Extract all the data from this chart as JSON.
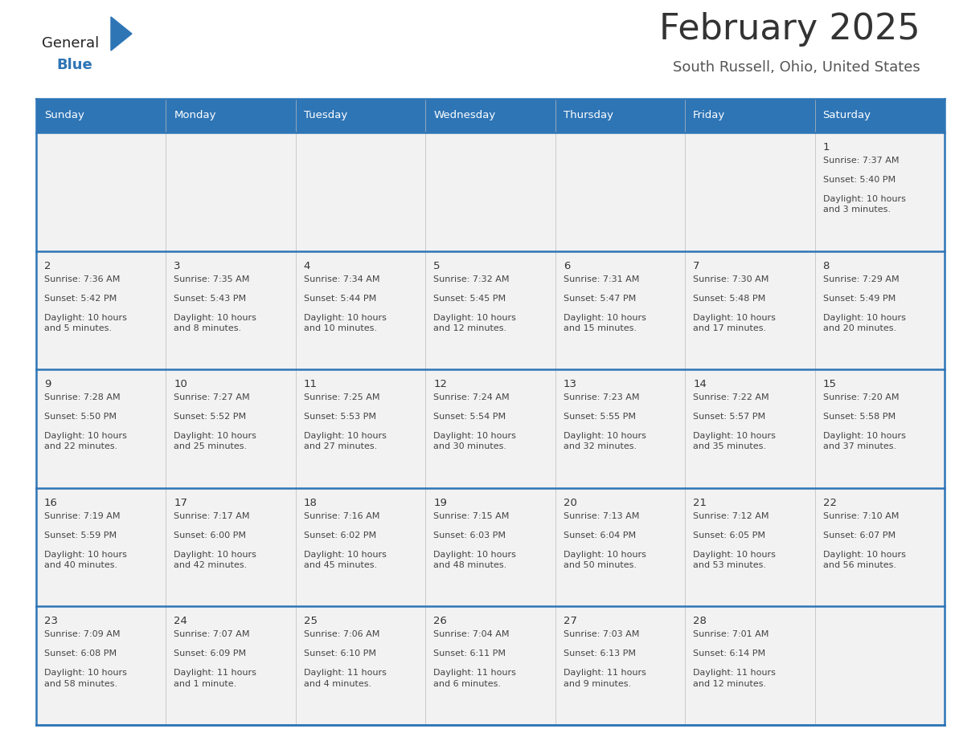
{
  "title": "February 2025",
  "subtitle": "South Russell, Ohio, United States",
  "days_of_week": [
    "Sunday",
    "Monday",
    "Tuesday",
    "Wednesday",
    "Thursday",
    "Friday",
    "Saturday"
  ],
  "header_bg": "#2E75B6",
  "header_text": "#FFFFFF",
  "cell_bg": "#F2F2F2",
  "border_color": "#2E75B6",
  "day_num_color": "#333333",
  "info_text_color": "#444444",
  "title_color": "#333333",
  "subtitle_color": "#555555",
  "logo_general_color": "#222222",
  "logo_blue_color": "#2E75B6",
  "num_rows": 5,
  "num_cols": 7,
  "calendar_data": [
    [
      null,
      null,
      null,
      null,
      null,
      null,
      {
        "day": "1",
        "sunrise": "7:37 AM",
        "sunset": "5:40 PM",
        "daylight": "10 hours\nand 3 minutes."
      }
    ],
    [
      {
        "day": "2",
        "sunrise": "7:36 AM",
        "sunset": "5:42 PM",
        "daylight": "10 hours\nand 5 minutes."
      },
      {
        "day": "3",
        "sunrise": "7:35 AM",
        "sunset": "5:43 PM",
        "daylight": "10 hours\nand 8 minutes."
      },
      {
        "day": "4",
        "sunrise": "7:34 AM",
        "sunset": "5:44 PM",
        "daylight": "10 hours\nand 10 minutes."
      },
      {
        "day": "5",
        "sunrise": "7:32 AM",
        "sunset": "5:45 PM",
        "daylight": "10 hours\nand 12 minutes."
      },
      {
        "day": "6",
        "sunrise": "7:31 AM",
        "sunset": "5:47 PM",
        "daylight": "10 hours\nand 15 minutes."
      },
      {
        "day": "7",
        "sunrise": "7:30 AM",
        "sunset": "5:48 PM",
        "daylight": "10 hours\nand 17 minutes."
      },
      {
        "day": "8",
        "sunrise": "7:29 AM",
        "sunset": "5:49 PM",
        "daylight": "10 hours\nand 20 minutes."
      }
    ],
    [
      {
        "day": "9",
        "sunrise": "7:28 AM",
        "sunset": "5:50 PM",
        "daylight": "10 hours\nand 22 minutes."
      },
      {
        "day": "10",
        "sunrise": "7:27 AM",
        "sunset": "5:52 PM",
        "daylight": "10 hours\nand 25 minutes."
      },
      {
        "day": "11",
        "sunrise": "7:25 AM",
        "sunset": "5:53 PM",
        "daylight": "10 hours\nand 27 minutes."
      },
      {
        "day": "12",
        "sunrise": "7:24 AM",
        "sunset": "5:54 PM",
        "daylight": "10 hours\nand 30 minutes."
      },
      {
        "day": "13",
        "sunrise": "7:23 AM",
        "sunset": "5:55 PM",
        "daylight": "10 hours\nand 32 minutes."
      },
      {
        "day": "14",
        "sunrise": "7:22 AM",
        "sunset": "5:57 PM",
        "daylight": "10 hours\nand 35 minutes."
      },
      {
        "day": "15",
        "sunrise": "7:20 AM",
        "sunset": "5:58 PM",
        "daylight": "10 hours\nand 37 minutes."
      }
    ],
    [
      {
        "day": "16",
        "sunrise": "7:19 AM",
        "sunset": "5:59 PM",
        "daylight": "10 hours\nand 40 minutes."
      },
      {
        "day": "17",
        "sunrise": "7:17 AM",
        "sunset": "6:00 PM",
        "daylight": "10 hours\nand 42 minutes."
      },
      {
        "day": "18",
        "sunrise": "7:16 AM",
        "sunset": "6:02 PM",
        "daylight": "10 hours\nand 45 minutes."
      },
      {
        "day": "19",
        "sunrise": "7:15 AM",
        "sunset": "6:03 PM",
        "daylight": "10 hours\nand 48 minutes."
      },
      {
        "day": "20",
        "sunrise": "7:13 AM",
        "sunset": "6:04 PM",
        "daylight": "10 hours\nand 50 minutes."
      },
      {
        "day": "21",
        "sunrise": "7:12 AM",
        "sunset": "6:05 PM",
        "daylight": "10 hours\nand 53 minutes."
      },
      {
        "day": "22",
        "sunrise": "7:10 AM",
        "sunset": "6:07 PM",
        "daylight": "10 hours\nand 56 minutes."
      }
    ],
    [
      {
        "day": "23",
        "sunrise": "7:09 AM",
        "sunset": "6:08 PM",
        "daylight": "10 hours\nand 58 minutes."
      },
      {
        "day": "24",
        "sunrise": "7:07 AM",
        "sunset": "6:09 PM",
        "daylight": "11 hours\nand 1 minute."
      },
      {
        "day": "25",
        "sunrise": "7:06 AM",
        "sunset": "6:10 PM",
        "daylight": "11 hours\nand 4 minutes."
      },
      {
        "day": "26",
        "sunrise": "7:04 AM",
        "sunset": "6:11 PM",
        "daylight": "11 hours\nand 6 minutes."
      },
      {
        "day": "27",
        "sunrise": "7:03 AM",
        "sunset": "6:13 PM",
        "daylight": "11 hours\nand 9 minutes."
      },
      {
        "day": "28",
        "sunrise": "7:01 AM",
        "sunset": "6:14 PM",
        "daylight": "11 hours\nand 12 minutes."
      },
      null
    ]
  ]
}
